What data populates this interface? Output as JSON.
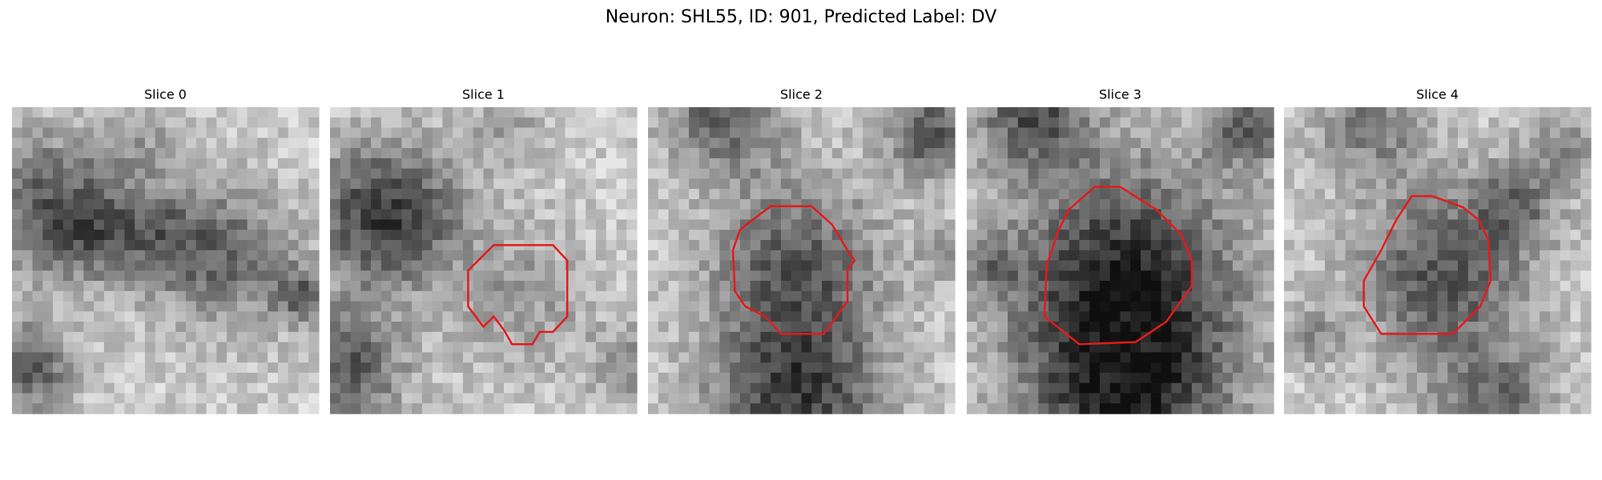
{
  "title": "Neuron: SHL55, ID: 901, Predicted Label: DV",
  "panels": [
    {
      "title": "Slice 0"
    },
    {
      "title": "Slice 1"
    },
    {
      "title": "Slice 2"
    },
    {
      "title": "Slice 3"
    },
    {
      "title": "Slice 4"
    }
  ]
}
